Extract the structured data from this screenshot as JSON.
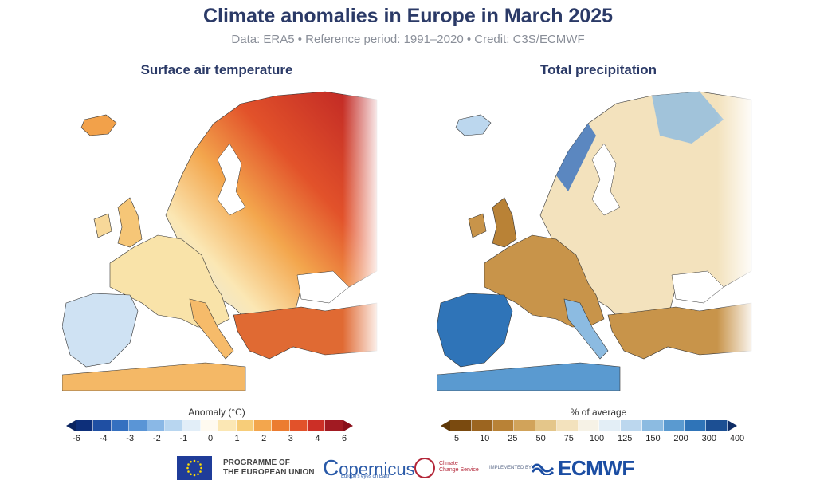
{
  "title": "Climate anomalies in Europe in March 2025",
  "subtitle": "Data: ERA5 • Reference period: 1991–2020 • Credit: C3S/ECMWF",
  "panels": [
    {
      "title": "Surface air temperature",
      "colorbar_label": "Anomaly (°C)",
      "ticks": [
        "-6",
        "-4",
        "-3",
        "-2",
        "-1",
        "0",
        "1",
        "2",
        "3",
        "4",
        "6"
      ],
      "colors": [
        "#0d2f7a",
        "#1f4fa3",
        "#3570c0",
        "#5a95d6",
        "#8ab8e6",
        "#b8d6f0",
        "#e2eef8",
        "#fffaf0",
        "#fbe7b4",
        "#f7cd79",
        "#f3a64d",
        "#ec7c30",
        "#e2522a",
        "#cc2f26",
        "#a11a22"
      ],
      "tri_left": "#0a2460",
      "tri_right": "#8a0f1a"
    },
    {
      "title": "Total precipitation",
      "colorbar_label": "% of average",
      "ticks": [
        "5",
        "10",
        "25",
        "50",
        "75",
        "100",
        "125",
        "150",
        "200",
        "300",
        "400"
      ],
      "colors": [
        "#7a4a0f",
        "#9c6520",
        "#b98236",
        "#d1a35a",
        "#e4c68a",
        "#f3e2bd",
        "#f6f2e6",
        "#e3eef6",
        "#bcd7ee",
        "#8cbbe1",
        "#5a9ad0",
        "#2f74b8",
        "#1c4f93"
      ],
      "tri_left": "#5e3808",
      "tri_right": "#0f2d66"
    }
  ],
  "logos": {
    "programme": "PROGRAMME OF",
    "programme2": "THE EUROPEAN UNION",
    "copernicus": "opernicus",
    "copernicus_c": "C",
    "copernicus_sub": "Europe's eyes on Earth",
    "c3s": "Climate",
    "c3s2": "Change Service",
    "implemented": "IMPLEMENTED BY",
    "ecmwf": "ECMWF"
  }
}
